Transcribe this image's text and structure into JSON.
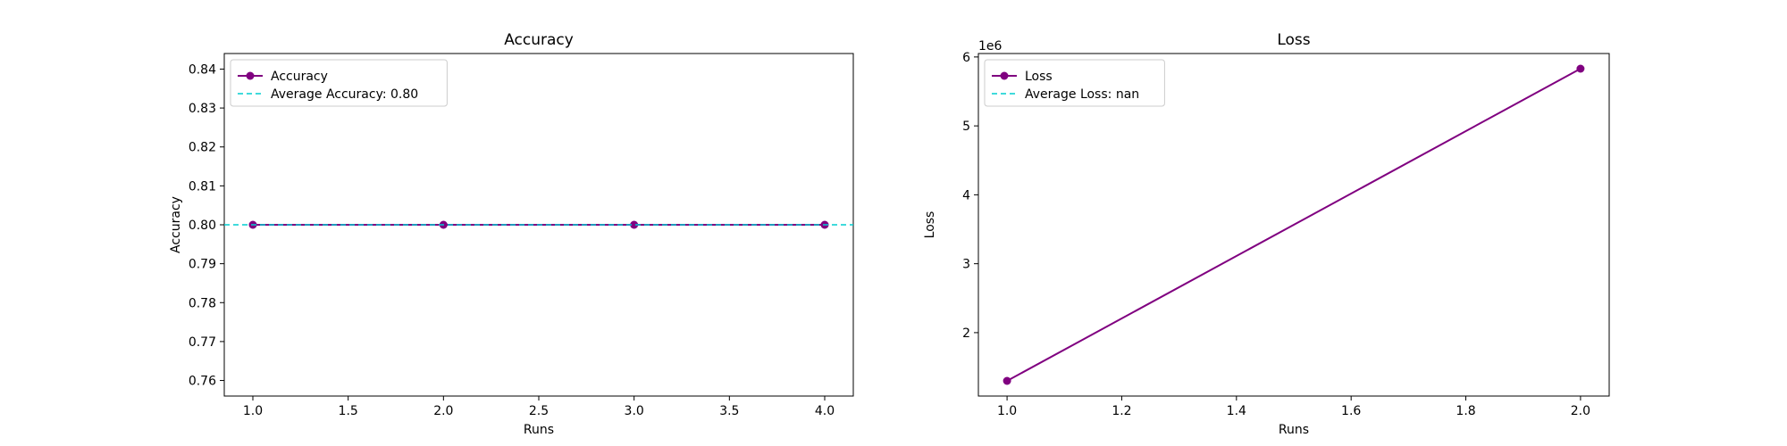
{
  "chart_data": [
    {
      "type": "line",
      "title": "Accuracy",
      "xlabel": "Runs",
      "ylabel": "Accuracy",
      "x": [
        1,
        2,
        3,
        4
      ],
      "series": [
        {
          "name": "Accuracy",
          "values": [
            0.8,
            0.8,
            0.8,
            0.8
          ],
          "color": "#800080",
          "marker": "circle"
        }
      ],
      "reference_line": {
        "label": "Average Accuracy: 0.80",
        "value": 0.8,
        "color": "#00CED1",
        "style": "dashed"
      },
      "xlim": [
        0.85,
        4.15
      ],
      "ylim": [
        0.756,
        0.844
      ],
      "xticks": [
        1.0,
        1.5,
        2.0,
        2.5,
        3.0,
        3.5,
        4.0
      ],
      "xtick_labels": [
        "1.0",
        "1.5",
        "2.0",
        "2.5",
        "3.0",
        "3.5",
        "4.0"
      ],
      "yticks": [
        0.76,
        0.77,
        0.78,
        0.79,
        0.8,
        0.81,
        0.82,
        0.83,
        0.84
      ],
      "ytick_labels": [
        "0.76",
        "0.77",
        "0.78",
        "0.79",
        "0.80",
        "0.81",
        "0.82",
        "0.83",
        "0.84"
      ],
      "offset_label": "",
      "grid": false,
      "legend_position": "top-left"
    },
    {
      "type": "line",
      "title": "Loss",
      "xlabel": "Runs",
      "ylabel": "Loss",
      "x": [
        1,
        2
      ],
      "series": [
        {
          "name": "Loss",
          "values": [
            1300000,
            5830000
          ],
          "color": "#800080",
          "marker": "circle"
        }
      ],
      "reference_line": {
        "label": "Average Loss: nan",
        "value": null,
        "color": "#00CED1",
        "style": "dashed"
      },
      "xlim": [
        0.95,
        2.05
      ],
      "ylim": [
        1080000,
        6050000
      ],
      "xticks": [
        1.0,
        1.2,
        1.4,
        1.6,
        1.8,
        2.0
      ],
      "xtick_labels": [
        "1.0",
        "1.2",
        "1.4",
        "1.6",
        "1.8",
        "2.0"
      ],
      "yticks": [
        2000000,
        3000000,
        4000000,
        5000000,
        6000000
      ],
      "ytick_labels": [
        "2",
        "3",
        "4",
        "5",
        "6"
      ],
      "offset_label": "1e6",
      "grid": false,
      "legend_position": "top-left"
    }
  ]
}
